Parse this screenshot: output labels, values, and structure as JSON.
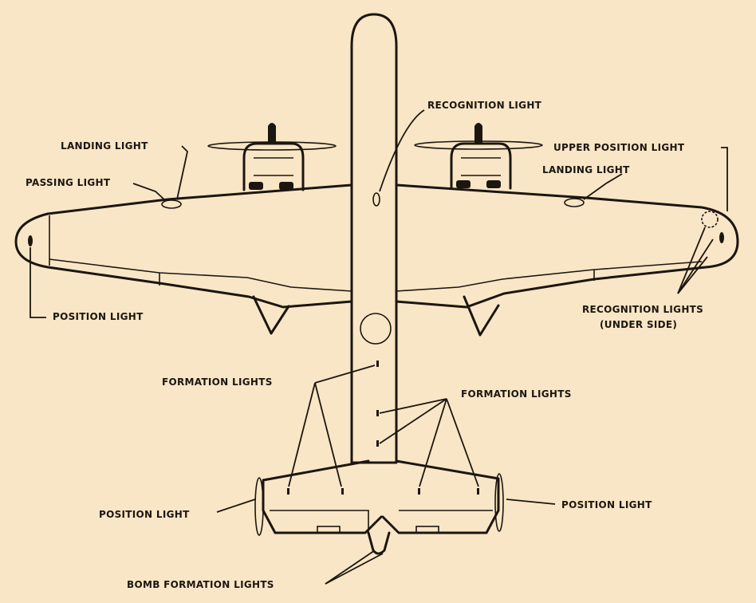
{
  "labels": {
    "recognition_light": "RECOGNITION LIGHT",
    "landing_light_left": "LANDING LIGHT",
    "passing_light": "PASSING LIGHT",
    "upper_position_light": "UPPER POSITION LIGHT",
    "landing_light_right": "LANDING LIGHT",
    "position_light_wingtip": "POSITION LIGHT",
    "recognition_lights_right": "RECOGNITION LIGHTS",
    "recognition_lights_right_sub": "(UNDER SIDE)",
    "formation_lights_left": "FORMATION LIGHTS",
    "formation_lights_right": "FORMATION LIGHTS",
    "position_light_tail_left": "POSITION LIGHT",
    "position_light_tail_right": "POSITION LIGHT",
    "bomb_formation_lights": "BOMB FORMATION LIGHTS"
  },
  "colors": {
    "background": "#f9e6c6",
    "ink": "#1c1610"
  }
}
